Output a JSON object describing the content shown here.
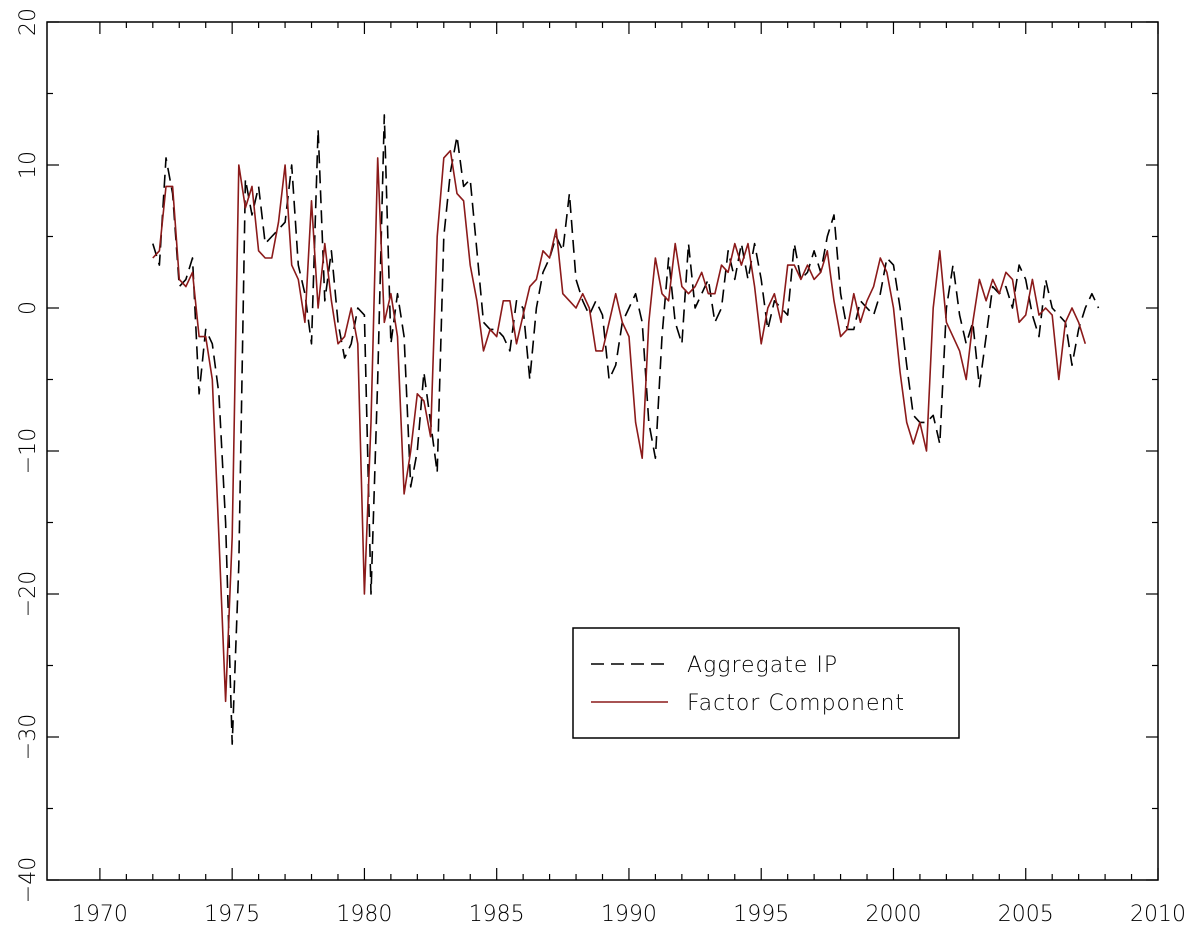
{
  "chart_data": {
    "type": "line",
    "xlim": [
      1968,
      2010
    ],
    "ylim": [
      -40,
      20
    ],
    "x_ticks": [
      "1970",
      "1975",
      "1980",
      "1985",
      "1990",
      "1995",
      "2000",
      "2005",
      "2010"
    ],
    "y_ticks": [
      "−40",
      "−30",
      "−20",
      "−10",
      "0",
      "10",
      "20"
    ],
    "legend_position": "lower-right",
    "grid": false,
    "series": [
      {
        "name": "Aggregate IP",
        "color": "#000000",
        "style": "dashed",
        "points": [
          [
            1972.0,
            4.5
          ],
          [
            1972.25,
            3.0
          ],
          [
            1972.5,
            10.5
          ],
          [
            1972.75,
            8.0
          ],
          [
            1973.0,
            1.5
          ],
          [
            1973.25,
            2.0
          ],
          [
            1973.5,
            3.5
          ],
          [
            1973.75,
            -6.0
          ],
          [
            1974.0,
            -1.5
          ],
          [
            1974.25,
            -2.5
          ],
          [
            1974.5,
            -6.0
          ],
          [
            1974.75,
            -15.0
          ],
          [
            1975.0,
            -30.5
          ],
          [
            1975.25,
            -18.0
          ],
          [
            1975.5,
            9.0
          ],
          [
            1975.75,
            6.5
          ],
          [
            1976.0,
            8.5
          ],
          [
            1976.25,
            4.5
          ],
          [
            1976.5,
            5.0
          ],
          [
            1976.75,
            5.5
          ],
          [
            1977.0,
            6.0
          ],
          [
            1977.25,
            10.0
          ],
          [
            1977.5,
            3.0
          ],
          [
            1977.75,
            1.0
          ],
          [
            1978.0,
            -2.5
          ],
          [
            1978.25,
            12.5
          ],
          [
            1978.5,
            0.5
          ],
          [
            1978.75,
            4.0
          ],
          [
            1979.0,
            -1.0
          ],
          [
            1979.25,
            -3.5
          ],
          [
            1979.5,
            -2.5
          ],
          [
            1979.75,
            0.0
          ],
          [
            1980.0,
            -0.5
          ],
          [
            1980.25,
            -20.0
          ],
          [
            1980.5,
            -5.0
          ],
          [
            1980.75,
            13.5
          ],
          [
            1981.0,
            -2.5
          ],
          [
            1981.25,
            1.0
          ],
          [
            1981.5,
            -2.0
          ],
          [
            1981.75,
            -12.5
          ],
          [
            1982.0,
            -10.0
          ],
          [
            1982.25,
            -4.5
          ],
          [
            1982.5,
            -8.0
          ],
          [
            1982.75,
            -11.5
          ],
          [
            1983.0,
            5.0
          ],
          [
            1983.25,
            9.5
          ],
          [
            1983.5,
            12.0
          ],
          [
            1983.75,
            8.5
          ],
          [
            1984.0,
            9.0
          ],
          [
            1984.25,
            4.0
          ],
          [
            1984.5,
            -1.0
          ],
          [
            1984.75,
            -1.5
          ],
          [
            1985.0,
            -1.5
          ],
          [
            1985.25,
            -2.0
          ],
          [
            1985.5,
            -3.0
          ],
          [
            1985.75,
            0.5
          ],
          [
            1986.0,
            0.0
          ],
          [
            1986.25,
            -5.0
          ],
          [
            1986.5,
            0.0
          ],
          [
            1986.75,
            2.5
          ],
          [
            1987.0,
            3.5
          ],
          [
            1987.25,
            5.0
          ],
          [
            1987.5,
            4.0
          ],
          [
            1987.75,
            8.0
          ],
          [
            1988.0,
            2.0
          ],
          [
            1988.25,
            0.5
          ],
          [
            1988.5,
            -0.5
          ],
          [
            1988.75,
            0.5
          ],
          [
            1989.0,
            -0.5
          ],
          [
            1989.25,
            -5.0
          ],
          [
            1989.5,
            -4.0
          ],
          [
            1989.75,
            -1.0
          ],
          [
            1990.0,
            0.0
          ],
          [
            1990.25,
            1.0
          ],
          [
            1990.5,
            -1.0
          ],
          [
            1990.75,
            -8.0
          ],
          [
            1991.0,
            -10.5
          ],
          [
            1991.25,
            -2.0
          ],
          [
            1991.5,
            3.5
          ],
          [
            1991.75,
            -1.0
          ],
          [
            1992.0,
            -2.5
          ],
          [
            1992.25,
            4.5
          ],
          [
            1992.5,
            0.0
          ],
          [
            1992.75,
            1.0
          ],
          [
            1993.0,
            2.0
          ],
          [
            1993.25,
            -1.0
          ],
          [
            1993.5,
            0.0
          ],
          [
            1993.75,
            4.0
          ],
          [
            1994.0,
            2.0
          ],
          [
            1994.25,
            4.5
          ],
          [
            1994.5,
            2.0
          ],
          [
            1994.75,
            4.5
          ],
          [
            1995.0,
            2.0
          ],
          [
            1995.25,
            -1.5
          ],
          [
            1995.5,
            0.5
          ],
          [
            1995.75,
            0.0
          ],
          [
            1996.0,
            -0.5
          ],
          [
            1996.25,
            4.5
          ],
          [
            1996.5,
            2.0
          ],
          [
            1996.75,
            2.5
          ],
          [
            1997.0,
            4.0
          ],
          [
            1997.25,
            2.5
          ],
          [
            1997.5,
            5.0
          ],
          [
            1997.75,
            6.5
          ],
          [
            1998.0,
            1.0
          ],
          [
            1998.25,
            -1.5
          ],
          [
            1998.5,
            -1.5
          ],
          [
            1998.75,
            0.5
          ],
          [
            1999.0,
            0.0
          ],
          [
            1999.25,
            -0.5
          ],
          [
            1999.5,
            1.0
          ],
          [
            1999.75,
            3.5
          ],
          [
            2000.0,
            3.0
          ],
          [
            2000.25,
            0.0
          ],
          [
            2000.5,
            -4.0
          ],
          [
            2000.75,
            -7.5
          ],
          [
            2001.0,
            -8.0
          ],
          [
            2001.25,
            -8.0
          ],
          [
            2001.5,
            -7.5
          ],
          [
            2001.75,
            -9.5
          ],
          [
            2002.0,
            0.0
          ],
          [
            2002.25,
            3.0
          ],
          [
            2002.5,
            -0.5
          ],
          [
            2002.75,
            -2.5
          ],
          [
            2003.0,
            -1.0
          ],
          [
            2003.25,
            -5.5
          ],
          [
            2003.5,
            -2.0
          ],
          [
            2003.75,
            1.5
          ],
          [
            2004.0,
            1.0
          ],
          [
            2004.25,
            1.5
          ],
          [
            2004.5,
            0.0
          ],
          [
            2004.75,
            3.0
          ],
          [
            2005.0,
            2.0
          ],
          [
            2005.25,
            -0.5
          ],
          [
            2005.5,
            -2.0
          ],
          [
            2005.75,
            2.0
          ],
          [
            2006.0,
            0.0
          ],
          [
            2006.25,
            -0.5
          ],
          [
            2006.5,
            -1.0
          ],
          [
            2006.75,
            -4.0
          ],
          [
            2007.0,
            -1.5
          ],
          [
            2007.25,
            0.0
          ],
          [
            2007.5,
            1.0
          ],
          [
            2007.75,
            0.0
          ]
        ]
      },
      {
        "name": "Factor Component",
        "color": "#8b1a1a",
        "style": "solid",
        "points": [
          [
            1972.0,
            3.5
          ],
          [
            1972.25,
            4.0
          ],
          [
            1972.5,
            8.5
          ],
          [
            1972.75,
            8.5
          ],
          [
            1973.0,
            2.0
          ],
          [
            1973.25,
            1.5
          ],
          [
            1973.5,
            2.5
          ],
          [
            1973.75,
            -2.0
          ],
          [
            1974.0,
            -2.0
          ],
          [
            1974.25,
            -5.0
          ],
          [
            1974.5,
            -16.0
          ],
          [
            1974.75,
            -27.5
          ],
          [
            1975.0,
            -16.0
          ],
          [
            1975.25,
            10.0
          ],
          [
            1975.5,
            7.0
          ],
          [
            1975.75,
            8.5
          ],
          [
            1976.0,
            4.0
          ],
          [
            1976.25,
            3.5
          ],
          [
            1976.5,
            3.5
          ],
          [
            1976.75,
            6.0
          ],
          [
            1977.0,
            10.0
          ],
          [
            1977.25,
            3.0
          ],
          [
            1977.5,
            2.0
          ],
          [
            1977.75,
            -1.0
          ],
          [
            1978.0,
            7.5
          ],
          [
            1978.25,
            0.0
          ],
          [
            1978.5,
            4.5
          ],
          [
            1978.75,
            0.5
          ],
          [
            1979.0,
            -2.5
          ],
          [
            1979.25,
            -2.0
          ],
          [
            1979.5,
            0.0
          ],
          [
            1979.75,
            -2.5
          ],
          [
            1980.0,
            -20.0
          ],
          [
            1980.25,
            -8.0
          ],
          [
            1980.5,
            10.5
          ],
          [
            1980.75,
            -1.0
          ],
          [
            1981.0,
            1.0
          ],
          [
            1981.25,
            -2.0
          ],
          [
            1981.5,
            -13.0
          ],
          [
            1981.75,
            -10.0
          ],
          [
            1982.0,
            -6.0
          ],
          [
            1982.25,
            -6.5
          ],
          [
            1982.5,
            -9.0
          ],
          [
            1982.75,
            5.0
          ],
          [
            1983.0,
            10.5
          ],
          [
            1983.25,
            11.0
          ],
          [
            1983.5,
            8.0
          ],
          [
            1983.75,
            7.5
          ],
          [
            1984.0,
            3.0
          ],
          [
            1984.25,
            0.5
          ],
          [
            1984.5,
            -3.0
          ],
          [
            1984.75,
            -1.5
          ],
          [
            1985.0,
            -2.0
          ],
          [
            1985.25,
            0.5
          ],
          [
            1985.5,
            0.5
          ],
          [
            1985.75,
            -2.5
          ],
          [
            1986.0,
            -0.5
          ],
          [
            1986.25,
            1.5
          ],
          [
            1986.5,
            2.0
          ],
          [
            1986.75,
            4.0
          ],
          [
            1987.0,
            3.5
          ],
          [
            1987.25,
            5.5
          ],
          [
            1987.5,
            1.0
          ],
          [
            1987.75,
            0.5
          ],
          [
            1988.0,
            0.0
          ],
          [
            1988.25,
            1.0
          ],
          [
            1988.5,
            0.0
          ],
          [
            1988.75,
            -3.0
          ],
          [
            1989.0,
            -3.0
          ],
          [
            1989.25,
            -1.0
          ],
          [
            1989.5,
            1.0
          ],
          [
            1989.75,
            -1.0
          ],
          [
            1990.0,
            -2.0
          ],
          [
            1990.25,
            -8.0
          ],
          [
            1990.5,
            -10.5
          ],
          [
            1990.75,
            -1.0
          ],
          [
            1991.0,
            3.5
          ],
          [
            1991.25,
            1.0
          ],
          [
            1991.5,
            0.5
          ],
          [
            1991.75,
            4.5
          ],
          [
            1992.0,
            1.5
          ],
          [
            1992.25,
            1.0
          ],
          [
            1992.5,
            1.5
          ],
          [
            1992.75,
            2.5
          ],
          [
            1993.0,
            1.0
          ],
          [
            1993.25,
            1.0
          ],
          [
            1993.5,
            3.0
          ],
          [
            1993.75,
            2.5
          ],
          [
            1994.0,
            4.5
          ],
          [
            1994.25,
            3.0
          ],
          [
            1994.5,
            4.5
          ],
          [
            1994.75,
            1.5
          ],
          [
            1995.0,
            -2.5
          ],
          [
            1995.25,
            0.0
          ],
          [
            1995.5,
            1.0
          ],
          [
            1995.75,
            -1.0
          ],
          [
            1996.0,
            3.0
          ],
          [
            1996.25,
            3.0
          ],
          [
            1996.5,
            2.0
          ],
          [
            1996.75,
            3.0
          ],
          [
            1997.0,
            2.0
          ],
          [
            1997.25,
            2.5
          ],
          [
            1997.5,
            4.0
          ],
          [
            1997.75,
            0.5
          ],
          [
            1998.0,
            -2.0
          ],
          [
            1998.25,
            -1.5
          ],
          [
            1998.5,
            1.0
          ],
          [
            1998.75,
            -1.0
          ],
          [
            1999.0,
            0.5
          ],
          [
            1999.25,
            1.5
          ],
          [
            1999.5,
            3.5
          ],
          [
            1999.75,
            2.5
          ],
          [
            2000.0,
            0.0
          ],
          [
            2000.25,
            -4.5
          ],
          [
            2000.5,
            -8.0
          ],
          [
            2000.75,
            -9.5
          ],
          [
            2001.0,
            -8.0
          ],
          [
            2001.25,
            -10.0
          ],
          [
            2001.5,
            0.0
          ],
          [
            2001.75,
            4.0
          ],
          [
            2002.0,
            -1.0
          ],
          [
            2002.25,
            -2.0
          ],
          [
            2002.5,
            -3.0
          ],
          [
            2002.75,
            -5.0
          ],
          [
            2003.0,
            -1.0
          ],
          [
            2003.25,
            2.0
          ],
          [
            2003.5,
            0.5
          ],
          [
            2003.75,
            2.0
          ],
          [
            2004.0,
            1.0
          ],
          [
            2004.25,
            2.5
          ],
          [
            2004.5,
            2.0
          ],
          [
            2004.75,
            -1.0
          ],
          [
            2005.0,
            -0.5
          ],
          [
            2005.25,
            2.0
          ],
          [
            2005.5,
            -0.5
          ],
          [
            2005.75,
            0.0
          ],
          [
            2006.0,
            -0.5
          ],
          [
            2006.25,
            -5.0
          ],
          [
            2006.5,
            -1.0
          ],
          [
            2006.75,
            0.0
          ],
          [
            2007.0,
            -1.0
          ],
          [
            2007.25,
            -2.5
          ]
        ]
      }
    ]
  }
}
